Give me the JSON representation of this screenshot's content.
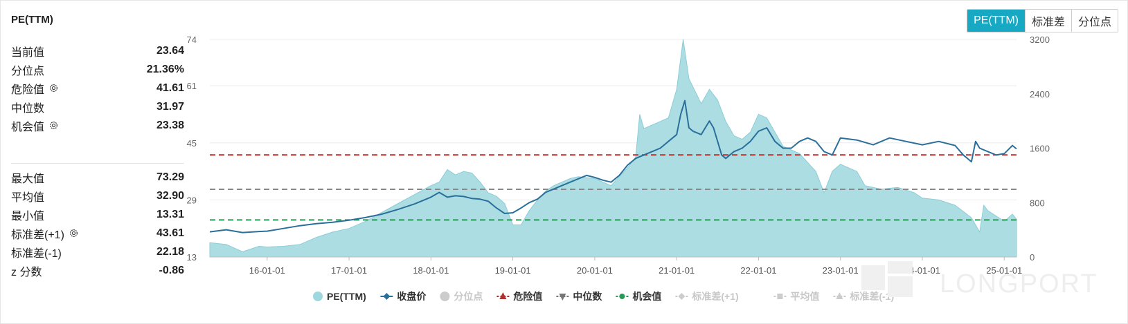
{
  "title": "PE(TTM)",
  "toggle": {
    "buttons": [
      {
        "label": "PE(TTM)",
        "active": true
      },
      {
        "label": "标准差",
        "active": false
      },
      {
        "label": "分位点",
        "active": false
      }
    ]
  },
  "stats": {
    "group1": [
      {
        "label": "当前值",
        "value": "23.64",
        "gear": false
      },
      {
        "label": "分位点",
        "value": "21.36%",
        "gear": false
      },
      {
        "label": "危险值",
        "value": "41.61",
        "gear": true
      },
      {
        "label": "中位数",
        "value": "31.97",
        "gear": false
      },
      {
        "label": "机会值",
        "value": "23.38",
        "gear": true
      }
    ],
    "group2": [
      {
        "label": "最大值",
        "value": "73.29",
        "gear": false
      },
      {
        "label": "平均值",
        "value": "32.90",
        "gear": false
      },
      {
        "label": "最小值",
        "value": "13.31",
        "gear": false
      },
      {
        "label": "标准差(+1)",
        "value": "43.61",
        "gear": true
      },
      {
        "label": "标准差(-1)",
        "value": "22.18",
        "gear": false
      },
      {
        "label": "z 分数",
        "value": "-0.86",
        "gear": false
      }
    ]
  },
  "watermark": "LONGPORT",
  "colors": {
    "pe_fill": "#abdde3",
    "price_line": "#2a6f9a",
    "danger": "#b03030",
    "median": "#888888",
    "opportunity": "#259a55",
    "accent": "#17a8c4"
  },
  "chart_data": {
    "type": "area",
    "x_ticks": [
      "16-01-01",
      "17-01-01",
      "18-01-01",
      "19-01-01",
      "20-01-01",
      "21-01-01",
      "22-01-01",
      "23-01-01",
      "24-01-01",
      "25-01-01"
    ],
    "y_left": {
      "ticks": [
        "13",
        "29",
        "45",
        "61",
        "74"
      ],
      "range": [
        13,
        74
      ]
    },
    "y_right": {
      "ticks": [
        "0",
        "800",
        "1600",
        "2400",
        "3200"
      ],
      "range": [
        0,
        3200
      ]
    },
    "x_range": [
      2015.3,
      2025.15
    ],
    "series": [
      {
        "name": "PE(TTM)",
        "axis": "left",
        "style": "area",
        "points": [
          [
            2015.3,
            17
          ],
          [
            2015.5,
            16.5
          ],
          [
            2015.7,
            14.5
          ],
          [
            2015.9,
            16
          ],
          [
            2016.0,
            15.8
          ],
          [
            2016.2,
            16
          ],
          [
            2016.4,
            16.5
          ],
          [
            2016.6,
            18.5
          ],
          [
            2016.8,
            20
          ],
          [
            2017.0,
            21
          ],
          [
            2017.2,
            23
          ],
          [
            2017.4,
            25.5
          ],
          [
            2017.6,
            28
          ],
          [
            2017.8,
            30.5
          ],
          [
            2018.0,
            33
          ],
          [
            2018.1,
            34
          ],
          [
            2018.2,
            37.5
          ],
          [
            2018.3,
            36
          ],
          [
            2018.4,
            37
          ],
          [
            2018.5,
            36.5
          ],
          [
            2018.6,
            34
          ],
          [
            2018.7,
            31
          ],
          [
            2018.8,
            30
          ],
          [
            2018.9,
            28
          ],
          [
            2019.0,
            22
          ],
          [
            2019.1,
            22
          ],
          [
            2019.2,
            26
          ],
          [
            2019.3,
            29
          ],
          [
            2019.4,
            31.5
          ],
          [
            2019.5,
            33
          ],
          [
            2019.7,
            35
          ],
          [
            2019.8,
            35.5
          ],
          [
            2020.0,
            35
          ],
          [
            2020.2,
            33
          ],
          [
            2020.4,
            38
          ],
          [
            2020.5,
            41
          ],
          [
            2020.55,
            53
          ],
          [
            2020.6,
            49
          ],
          [
            2020.8,
            51
          ],
          [
            2020.9,
            52
          ],
          [
            2021.0,
            60
          ],
          [
            2021.08,
            74
          ],
          [
            2021.15,
            63
          ],
          [
            2021.3,
            56
          ],
          [
            2021.4,
            60
          ],
          [
            2021.5,
            57
          ],
          [
            2021.6,
            51
          ],
          [
            2021.7,
            47
          ],
          [
            2021.8,
            46
          ],
          [
            2021.9,
            48
          ],
          [
            2022.0,
            53
          ],
          [
            2022.1,
            52
          ],
          [
            2022.3,
            44
          ],
          [
            2022.5,
            42
          ],
          [
            2022.7,
            37
          ],
          [
            2022.8,
            31
          ],
          [
            2022.9,
            37
          ],
          [
            2023.0,
            39
          ],
          [
            2023.2,
            37
          ],
          [
            2023.3,
            33
          ],
          [
            2023.5,
            32
          ],
          [
            2023.7,
            32.5
          ],
          [
            2023.9,
            31
          ],
          [
            2024.0,
            29.5
          ],
          [
            2024.2,
            29
          ],
          [
            2024.4,
            27.5
          ],
          [
            2024.6,
            24
          ],
          [
            2024.7,
            20
          ],
          [
            2024.75,
            27.5
          ],
          [
            2024.8,
            26
          ],
          [
            2024.9,
            24.5
          ],
          [
            2025.0,
            23
          ],
          [
            2025.1,
            25
          ],
          [
            2025.15,
            23.6
          ]
        ]
      },
      {
        "name": "收盘价",
        "axis": "right",
        "style": "line",
        "points": [
          [
            2015.3,
            370
          ],
          [
            2015.5,
            400
          ],
          [
            2015.7,
            360
          ],
          [
            2015.9,
            375
          ],
          [
            2016.0,
            380
          ],
          [
            2016.2,
            420
          ],
          [
            2016.4,
            460
          ],
          [
            2016.6,
            490
          ],
          [
            2016.8,
            510
          ],
          [
            2017.0,
            540
          ],
          [
            2017.2,
            580
          ],
          [
            2017.4,
            630
          ],
          [
            2017.6,
            700
          ],
          [
            2017.8,
            780
          ],
          [
            2018.0,
            880
          ],
          [
            2018.1,
            950
          ],
          [
            2018.2,
            880
          ],
          [
            2018.3,
            900
          ],
          [
            2018.4,
            890
          ],
          [
            2018.5,
            860
          ],
          [
            2018.6,
            850
          ],
          [
            2018.7,
            820
          ],
          [
            2018.8,
            720
          ],
          [
            2018.9,
            640
          ],
          [
            2019.0,
            650
          ],
          [
            2019.1,
            720
          ],
          [
            2019.2,
            800
          ],
          [
            2019.3,
            850
          ],
          [
            2019.4,
            950
          ],
          [
            2019.5,
            1000
          ],
          [
            2019.6,
            1050
          ],
          [
            2019.7,
            1100
          ],
          [
            2019.8,
            1150
          ],
          [
            2019.9,
            1200
          ],
          [
            2020.0,
            1170
          ],
          [
            2020.1,
            1130
          ],
          [
            2020.2,
            1100
          ],
          [
            2020.3,
            1200
          ],
          [
            2020.4,
            1350
          ],
          [
            2020.5,
            1450
          ],
          [
            2020.6,
            1500
          ],
          [
            2020.7,
            1550
          ],
          [
            2020.8,
            1600
          ],
          [
            2020.9,
            1700
          ],
          [
            2021.0,
            1800
          ],
          [
            2021.05,
            2100
          ],
          [
            2021.1,
            2300
          ],
          [
            2021.15,
            1900
          ],
          [
            2021.2,
            1850
          ],
          [
            2021.3,
            1800
          ],
          [
            2021.4,
            2000
          ],
          [
            2021.45,
            1900
          ],
          [
            2021.55,
            1500
          ],
          [
            2021.6,
            1450
          ],
          [
            2021.7,
            1550
          ],
          [
            2021.8,
            1600
          ],
          [
            2021.9,
            1700
          ],
          [
            2022.0,
            1850
          ],
          [
            2022.1,
            1900
          ],
          [
            2022.2,
            1700
          ],
          [
            2022.3,
            1600
          ],
          [
            2022.4,
            1600
          ],
          [
            2022.5,
            1700
          ],
          [
            2022.6,
            1750
          ],
          [
            2022.7,
            1700
          ],
          [
            2022.8,
            1550
          ],
          [
            2022.9,
            1500
          ],
          [
            2023.0,
            1750
          ],
          [
            2023.2,
            1720
          ],
          [
            2023.4,
            1650
          ],
          [
            2023.6,
            1750
          ],
          [
            2023.8,
            1700
          ],
          [
            2024.0,
            1650
          ],
          [
            2024.2,
            1700
          ],
          [
            2024.4,
            1640
          ],
          [
            2024.5,
            1500
          ],
          [
            2024.6,
            1400
          ],
          [
            2024.65,
            1700
          ],
          [
            2024.7,
            1600
          ],
          [
            2024.8,
            1550
          ],
          [
            2024.9,
            1500
          ],
          [
            2025.0,
            1520
          ],
          [
            2025.1,
            1640
          ],
          [
            2025.15,
            1590
          ]
        ]
      }
    ],
    "reference_lines": [
      {
        "name": "危险值",
        "value": 41.61,
        "style": "dashed"
      },
      {
        "name": "中位数",
        "value": 31.97,
        "style": "dashed"
      },
      {
        "name": "机会值",
        "value": 23.38,
        "style": "dashed"
      }
    ],
    "legend": {
      "placement": "bottom",
      "items": [
        {
          "name": "PE(TTM)",
          "marker": "circle",
          "color": "#9fd7df",
          "active": true
        },
        {
          "name": "收盘价",
          "marker": "diamond-line",
          "color": "#2a6f9a",
          "active": true
        },
        {
          "name": "分位点",
          "marker": "circle",
          "color": "#cccccc",
          "active": false
        },
        {
          "name": "危险值",
          "marker": "triangle-line",
          "color": "#b03030",
          "active": true
        },
        {
          "name": "中位数",
          "marker": "triangle-down-line",
          "color": "#777777",
          "active": true
        },
        {
          "name": "机会值",
          "marker": "circle-line",
          "color": "#259a55",
          "active": true
        },
        {
          "name": "标准差(+1)",
          "marker": "diamond-line",
          "color": "#cccccc",
          "active": false
        },
        {
          "name": "平均值",
          "marker": "square-line",
          "color": "#cccccc",
          "active": false
        },
        {
          "name": "标准差(-1)",
          "marker": "triangle-line",
          "color": "#cccccc",
          "active": false
        }
      ]
    },
    "grid": true
  }
}
